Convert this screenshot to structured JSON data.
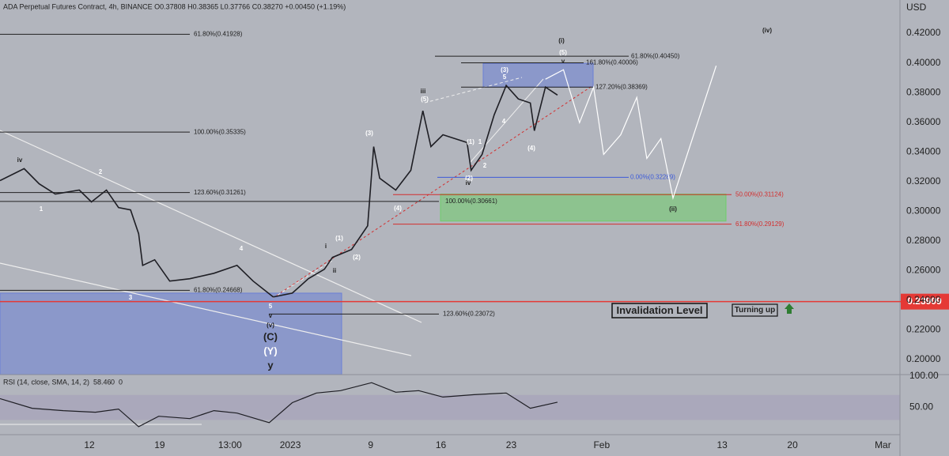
{
  "chart_data": [
    {
      "type": "line",
      "title": "ADA Perpetual Futures Contract, 4h, BINANCE  O0.37808 H0.38365 L0.37766 C0.38270 +0.00450 (+1.19%)",
      "y_unit": "USD",
      "x": [
        -8.9,
        -6.5,
        -5.0,
        -3.4,
        -1.0,
        0.2,
        1.7,
        2.9,
        4.1,
        4.9,
        5.3,
        6.5,
        8.0,
        10.0,
        12.4,
        14.7,
        16.3,
        18.3,
        20.2,
        21.8,
        23.4,
        24.2,
        26.1,
        27.7,
        28.3,
        28.9,
        30.5,
        32.0,
        33.2,
        34.0,
        35.2,
        37.6,
        38.0,
        39.1,
        40.3,
        41.5,
        42.7,
        43.9,
        44.3,
        45.4,
        46.6
      ],
      "values": [
        0.3207,
        0.3287,
        0.3185,
        0.3116,
        0.3143,
        0.3063,
        0.3143,
        0.3025,
        0.3009,
        0.2849,
        0.2635,
        0.2673,
        0.2529,
        0.2545,
        0.2582,
        0.2635,
        0.2529,
        0.2422,
        0.2448,
        0.2545,
        0.2609,
        0.2689,
        0.2742,
        0.2902,
        0.3436,
        0.3223,
        0.3143,
        0.3276,
        0.3677,
        0.3436,
        0.3516,
        0.3463,
        0.3276,
        0.3383,
        0.365,
        0.3848,
        0.3757,
        0.373,
        0.3543,
        0.3837,
        0.3783
      ],
      "color": "#1e1e24",
      "projection": {
        "x": [
          45.4,
          47.2,
          48.8,
          50.2,
          51.2,
          52.9,
          54.5,
          55.5,
          56.9,
          58.1,
          62.4
        ],
        "values": [
          0.389,
          0.3954,
          0.3597,
          0.3837,
          0.3383,
          0.3516,
          0.3767,
          0.3356,
          0.349,
          0.3089,
          0.3981
        ],
        "color": "#ffffff"
      },
      "xlim": [
        -8.9,
        80.7
      ],
      "xticks": [
        {
          "value": 0,
          "label": "12"
        },
        {
          "value": 7,
          "label": "19"
        },
        {
          "value": 14,
          "label": "13:00"
        },
        {
          "value": 20,
          "label": "2023"
        },
        {
          "value": 28,
          "label": "9"
        },
        {
          "value": 35,
          "label": "16"
        },
        {
          "value": 42,
          "label": "23"
        },
        {
          "value": 51,
          "label": "Feb"
        },
        {
          "value": 63,
          "label": "13"
        },
        {
          "value": 70,
          "label": "20"
        },
        {
          "value": 79,
          "label": "Mar"
        }
      ],
      "ylim": [
        0.1899,
        0.4424
      ],
      "yticks": [
        {
          "value": 0.2,
          "label": "0.20000"
        },
        {
          "value": 0.22,
          "label": "0.22000"
        },
        {
          "value": 0.24,
          "label": "0.24000"
        },
        {
          "value": 0.26,
          "label": "0.26000"
        },
        {
          "value": 0.28,
          "label": "0.28000"
        },
        {
          "value": 0.3,
          "label": "0.30000"
        },
        {
          "value": 0.32,
          "label": "0.32000"
        },
        {
          "value": 0.34,
          "label": "0.34000"
        },
        {
          "value": 0.36,
          "label": "0.36000"
        },
        {
          "value": 0.38,
          "label": "0.38000"
        },
        {
          "value": 0.4,
          "label": "0.40000"
        },
        {
          "value": 0.42,
          "label": "0.42000"
        }
      ],
      "levels": [
        {
          "label": "61.80%(0.41928)",
          "value": 0.41928,
          "color": "#222222"
        },
        {
          "label": "100.00%(0.35335)",
          "value": 0.35335,
          "color": "#222222"
        },
        {
          "label": "123.60%(0.31261)",
          "value": 0.31261,
          "color": "#222222"
        },
        {
          "label": "100.00%(0.30661)",
          "value": 0.30661,
          "color": "#222222"
        },
        {
          "label": "61.80%(0.24668)",
          "value": 0.24668,
          "color": "#222222"
        },
        {
          "label": "123.60%(0.23072)",
          "value": 0.23072,
          "color": "#222222"
        },
        {
          "label": "61.80%(0.40450)",
          "value": 0.4045,
          "color": "#222222"
        },
        {
          "label": "161.80%(0.40006)",
          "value": 0.40006,
          "color": "#222222"
        },
        {
          "label": "127.20%(0.38369)",
          "value": 0.38369,
          "color": "#222222"
        },
        {
          "label": "0.00%(0.32289)",
          "value": 0.32289,
          "color": "#3d5bd9"
        },
        {
          "label": "50.00%(0.31124)",
          "value": 0.31124,
          "color": "#d32f2f"
        },
        {
          "label": "61.80%(0.29129)",
          "value": 0.29129,
          "color": "#d32f2f"
        }
      ],
      "zones": [
        {
          "range": [
            0.19,
            0.2448
          ],
          "color": "#6b7fd6"
        },
        {
          "range": [
            0.3837,
            0.3997
          ],
          "color": "#6b7fd6"
        },
        {
          "range": [
            0.2934,
            0.3116
          ],
          "color": "#6fce6a"
        }
      ],
      "invalidation": {
        "value": 0.23909,
        "label": "Invalidation Level",
        "color": "#e53935"
      },
      "signal": "Turning up",
      "wave_labels": [
        "iv",
        "1",
        "2",
        "3",
        "4",
        "5",
        "v",
        "(v)",
        "(C)",
        "(Y)",
        "y",
        "i",
        "ii",
        "(1)",
        "(2)",
        "(3)",
        "(4)",
        "iii",
        "(5)",
        "(1)",
        "1",
        "2",
        "(2)",
        "iv",
        "(3)",
        "5",
        "4",
        "(4)",
        "(5)",
        "v",
        "(i)",
        "(ii)",
        "(iv)"
      ]
    },
    {
      "type": "line",
      "title": "RSI (14, close, SMA, 14, 2)",
      "current": [
        58.46,
        0,
        0
      ],
      "x": [
        -8.9,
        -5.7,
        -2.6,
        0.6,
        2.9,
        4.9,
        6.9,
        10.0,
        12.4,
        14.7,
        17.9,
        20.2,
        22.6,
        25.0,
        28.1,
        30.5,
        32.8,
        35.2,
        38.3,
        41.5,
        43.9,
        46.6
      ],
      "values": [
        64.1,
        48.7,
        44.9,
        42.3,
        47.4,
        19.2,
        35.9,
        32.1,
        44.9,
        41.0,
        25.6,
        57.7,
        73.1,
        76.9,
        89.7,
        74.4,
        76.9,
        66.7,
        70.5,
        73.1,
        48.7,
        58.46
      ],
      "color": "#1e1e24",
      "band": [
        30,
        70
      ],
      "xlim": [
        -8.9,
        80.7
      ],
      "ylim": [
        6.4,
        102.6
      ],
      "yticks": [
        {
          "value": 100,
          "label": "100.00"
        },
        {
          "value": 50,
          "label": "50.00"
        }
      ]
    }
  ]
}
